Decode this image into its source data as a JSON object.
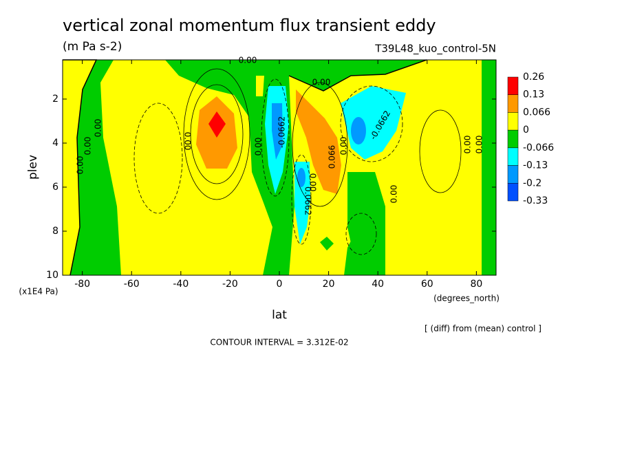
{
  "chart_data": {
    "type": "contour",
    "title": "vertical zonal momentum flux transient eddy",
    "subtitle": "(m Pa s-2)",
    "run_label": "T39L48_kuo_control-5N",
    "x_label": "lat",
    "x_units": "(degrees_north)",
    "y_label": "plev",
    "y_units": "(x1E4 Pa)",
    "diff_note": "[ (diff) from (mean) control ]",
    "contour_interval": "CONTOUR INTERVAL = 3.312E-02",
    "xlim": [
      -88,
      88
    ],
    "xticks": [
      -80,
      -60,
      -40,
      -20,
      0,
      20,
      40,
      60,
      80
    ],
    "ylim": [
      10,
      0.22
    ],
    "yticks": [
      2,
      4,
      6,
      8,
      10
    ],
    "colorbar": {
      "levels": [
        0.26,
        0.13,
        0.066,
        0,
        -0.066,
        -0.13,
        -0.2,
        -0.33
      ],
      "colors": [
        "#ff0000",
        "#ff9900",
        "#ffff00",
        "#00cc00",
        "#00ffff",
        "#0099ff",
        "#0050ff"
      ]
    },
    "contour_labels": [
      "0.00",
      "0.00",
      "0.00",
      "0.00",
      "0.00",
      "0.00",
      "0.00",
      "-0.0662",
      "0.066",
      "0.00",
      "-0.0662",
      "0.00",
      "0.0662",
      "0.00",
      "0.00",
      "0.00"
    ]
  }
}
